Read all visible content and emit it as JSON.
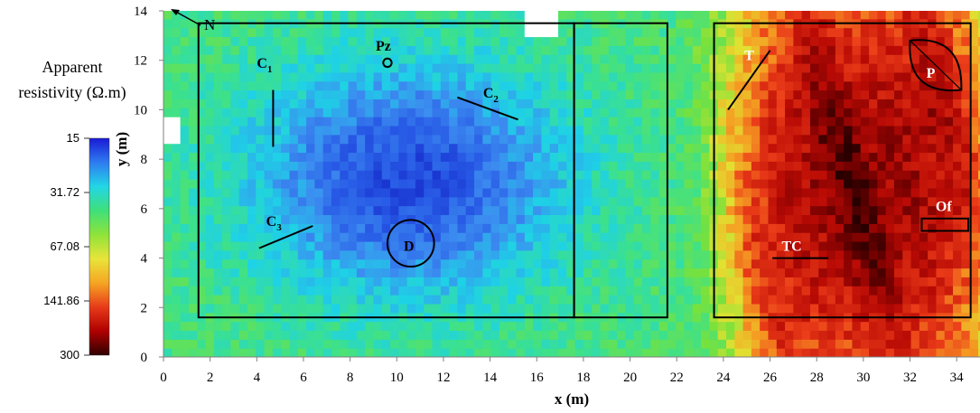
{
  "chart_data": {
    "type": "heatmap",
    "xlabel": "x (m)",
    "ylabel": "y (m)",
    "xlim": [
      0,
      35
    ],
    "ylim": [
      0,
      14
    ],
    "x_ticks": [
      "0",
      "2",
      "4",
      "6",
      "8",
      "10",
      "12",
      "14",
      "16",
      "18",
      "20",
      "22",
      "24",
      "26",
      "28",
      "30",
      "32",
      "34"
    ],
    "y_ticks": [
      "0",
      "2",
      "4",
      "6",
      "8",
      "10",
      "12",
      "14"
    ],
    "colorbar": {
      "title_line1": "Apparent",
      "title_line2": "resistivity (Ω.m)",
      "ticks": [
        "15",
        "31.72",
        "67.08",
        "141.86",
        "300"
      ],
      "range": [
        15,
        300
      ],
      "scale": "log",
      "colors": [
        "#1a1ad6",
        "#2e7bf0",
        "#22d6e6",
        "#3fe07a",
        "#8fe33a",
        "#e8e43a",
        "#f5a623",
        "#e83b1a",
        "#b00000",
        "#300000"
      ]
    },
    "north_label": "N",
    "rectangles": [
      {
        "x0": 1.5,
        "y0": 1.6,
        "x1": 17.6,
        "y1": 13.5
      },
      {
        "x0": 17.6,
        "y0": 1.6,
        "x1": 21.6,
        "y1": 13.5
      },
      {
        "x0": 23.6,
        "y0": 1.6,
        "x1": 34.6,
        "y1": 13.5
      }
    ],
    "features": [
      {
        "label": "Pz",
        "sub": "",
        "shape": "circle",
        "cx": 9.6,
        "cy": 11.9,
        "r": 0.18,
        "lx": 9.1,
        "ly": 12.4
      },
      {
        "label": "C",
        "sub": "1",
        "shape": "line",
        "x0": 4.7,
        "y0": 10.8,
        "x1": 4.7,
        "y1": 8.5,
        "lx": 4.0,
        "ly": 11.7
      },
      {
        "label": "C",
        "sub": "2",
        "shape": "line",
        "x0": 12.6,
        "y0": 10.5,
        "x1": 15.2,
        "y1": 9.6,
        "lx": 13.7,
        "ly": 10.5
      },
      {
        "label": "C",
        "sub": "3",
        "shape": "line",
        "x0": 4.1,
        "y0": 4.4,
        "x1": 6.4,
        "y1": 5.3,
        "lx": 4.4,
        "ly": 5.3
      },
      {
        "label": "D",
        "sub": "",
        "shape": "circle",
        "cx": 10.6,
        "cy": 4.6,
        "r": 1.0,
        "lx": 10.3,
        "ly": 4.3
      },
      {
        "label": "T",
        "sub": "",
        "shape": "line",
        "x0": 24.2,
        "y0": 10.0,
        "x1": 26.0,
        "y1": 12.4,
        "lx": 24.9,
        "ly": 12.0
      },
      {
        "label": "P",
        "sub": "",
        "shape": "lens",
        "x0": 32.0,
        "y0": 12.8,
        "x1": 34.2,
        "y1": 10.8,
        "lx": 32.7,
        "ly": 11.3
      },
      {
        "label": "TC",
        "sub": "",
        "shape": "line",
        "x0": 26.1,
        "y0": 4.0,
        "x1": 28.5,
        "y1": 4.0,
        "lx": 26.5,
        "ly": 4.3
      },
      {
        "label": "Of",
        "sub": "",
        "shape": "rect",
        "x0": 32.5,
        "y0": 5.1,
        "x1": 34.5,
        "y1": 5.6,
        "lx": 33.1,
        "ly": 5.9
      }
    ],
    "grid": false
  }
}
